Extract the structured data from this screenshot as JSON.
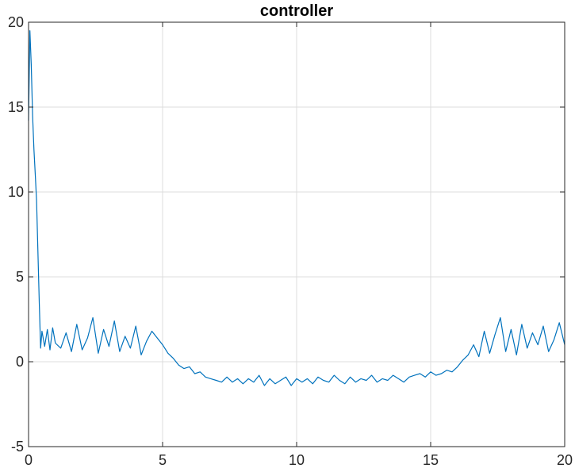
{
  "chart_data": {
    "type": "line",
    "title": "controller",
    "xlabel": "",
    "ylabel": "",
    "xlim": [
      0,
      20
    ],
    "ylim": [
      -5,
      20
    ],
    "xticks": [
      0,
      5,
      10,
      15,
      20
    ],
    "yticks": [
      -5,
      0,
      5,
      10,
      15,
      20
    ],
    "xtick_labels": [
      "0",
      "5",
      "10",
      "15",
      "20"
    ],
    "ytick_labels": [
      "-5",
      "0",
      "5",
      "10",
      "15",
      "20"
    ],
    "grid": true,
    "series": [
      {
        "color": "#0072BD",
        "x": [
          0,
          0.05,
          0.1,
          0.15,
          0.2,
          0.25,
          0.3,
          0.35,
          0.4,
          0.45,
          0.5,
          0.6,
          0.7,
          0.8,
          0.9,
          1.0,
          1.2,
          1.4,
          1.6,
          1.8,
          2.0,
          2.2,
          2.4,
          2.6,
          2.8,
          3.0,
          3.2,
          3.4,
          3.6,
          3.8,
          4.0,
          4.2,
          4.4,
          4.6,
          4.8,
          5.0,
          5.2,
          5.4,
          5.6,
          5.8,
          6.0,
          6.2,
          6.4,
          6.6,
          6.8,
          7.0,
          7.2,
          7.4,
          7.6,
          7.8,
          8.0,
          8.2,
          8.4,
          8.6,
          8.8,
          9.0,
          9.2,
          9.4,
          9.6,
          9.8,
          10.0,
          10.2,
          10.4,
          10.6,
          10.8,
          11.0,
          11.2,
          11.4,
          11.6,
          11.8,
          12.0,
          12.2,
          12.4,
          12.6,
          12.8,
          13.0,
          13.2,
          13.4,
          13.6,
          13.8,
          14.0,
          14.2,
          14.4,
          14.6,
          14.8,
          15.0,
          15.2,
          15.4,
          15.6,
          15.8,
          16.0,
          16.2,
          16.4,
          16.6,
          16.8,
          17.0,
          17.2,
          17.4,
          17.6,
          17.8,
          18.0,
          18.2,
          18.4,
          18.6,
          18.8,
          19.0,
          19.2,
          19.4,
          19.6,
          19.8,
          20.0
        ],
        "y": [
          14.2,
          19.5,
          17.5,
          14.5,
          12.5,
          11.0,
          9.5,
          6.5,
          3.5,
          0.8,
          1.8,
          0.9,
          1.9,
          0.7,
          2.0,
          1.1,
          0.8,
          1.7,
          0.6,
          2.2,
          0.7,
          1.4,
          2.6,
          0.5,
          1.9,
          0.9,
          2.4,
          0.6,
          1.5,
          0.8,
          2.1,
          0.4,
          1.2,
          1.8,
          1.4,
          1.0,
          0.5,
          0.2,
          -0.2,
          -0.4,
          -0.3,
          -0.7,
          -0.6,
          -0.9,
          -1.0,
          -1.1,
          -1.2,
          -0.9,
          -1.2,
          -1.0,
          -1.3,
          -1.0,
          -1.2,
          -0.8,
          -1.4,
          -1.0,
          -1.3,
          -1.1,
          -0.9,
          -1.4,
          -1.0,
          -1.2,
          -1.0,
          -1.3,
          -0.9,
          -1.1,
          -1.2,
          -0.8,
          -1.1,
          -1.3,
          -0.9,
          -1.2,
          -1.0,
          -1.1,
          -0.8,
          -1.2,
          -1.0,
          -1.1,
          -0.8,
          -1.0,
          -1.2,
          -0.9,
          -0.8,
          -0.7,
          -0.9,
          -0.6,
          -0.8,
          -0.7,
          -0.5,
          -0.6,
          -0.3,
          0.1,
          0.4,
          1.0,
          0.3,
          1.8,
          0.5,
          1.6,
          2.6,
          0.6,
          1.9,
          0.4,
          2.2,
          0.8,
          1.7,
          1.0,
          2.1,
          0.6,
          1.3,
          2.3,
          1.0
        ]
      }
    ]
  }
}
